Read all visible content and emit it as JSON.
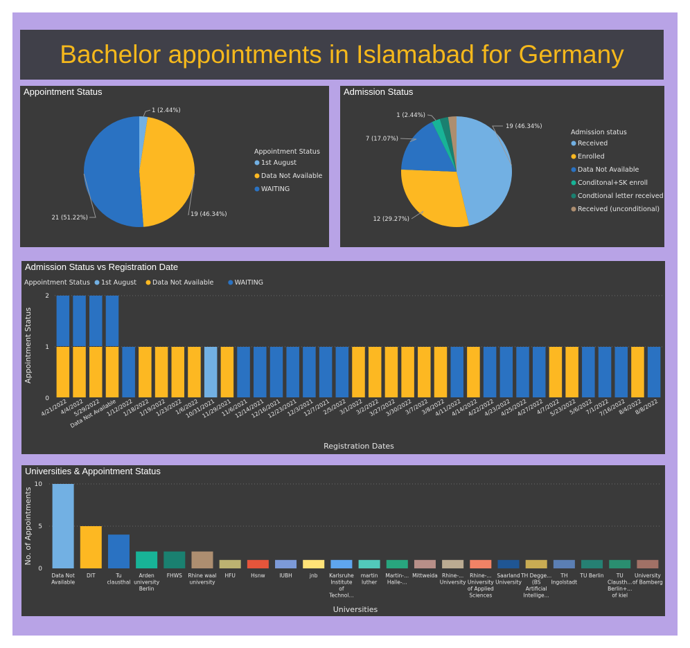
{
  "title": "Bachelor appointments in Islamabad for Germany",
  "colors": {
    "light_blue": "#72b0e3",
    "yellow": "#fdb822",
    "blue": "#2a72c2",
    "teal": "#18b397",
    "dark_teal": "#1a8070",
    "tan": "#ad8e70",
    "panel_bg": "#3a3a3a",
    "page_bg": "#b8a3e6",
    "title_color": "#f5b81c"
  },
  "chart_data": [
    {
      "id": "appointment-status",
      "type": "pie",
      "title": "Appointment Status",
      "legend_title": "Appointment Status",
      "legend_position": "right",
      "slices": [
        {
          "label": "1st August",
          "value": 1,
          "percent_label": "1 (2.44%)",
          "color": "#72b0e3"
        },
        {
          "label": "Data Not Available",
          "value": 19,
          "percent_label": "19 (46.34%)",
          "color": "#fdb822"
        },
        {
          "label": "WAITING",
          "value": 21,
          "percent_label": "21 (51.22%)",
          "color": "#2a72c2"
        }
      ]
    },
    {
      "id": "admission-status",
      "type": "pie",
      "title": "Admission Status",
      "legend_title": "Admission status",
      "legend_position": "right",
      "slices": [
        {
          "label": "Received",
          "value": 19,
          "percent_label": "19 (46.34%)",
          "color": "#72b0e3"
        },
        {
          "label": "Enrolled",
          "value": 12,
          "percent_label": "12 (29.27%)",
          "color": "#fdb822"
        },
        {
          "label": "Data Not Available",
          "value": 7,
          "percent_label": "7 (17.07%)",
          "color": "#2a72c2"
        },
        {
          "label": "Conditonal+SK enroll",
          "value": 1,
          "percent_label": "1 (2.44%)",
          "color": "#18b397"
        },
        {
          "label": "Condtional letter received",
          "value": 1,
          "percent_label": "",
          "color": "#1a8070"
        },
        {
          "label": "Received (unconditional)",
          "value": 1,
          "percent_label": "",
          "color": "#ad8e70"
        }
      ]
    },
    {
      "id": "status-vs-date",
      "type": "bar",
      "stacked": true,
      "title": "Admission Status vs Registration Date",
      "legend_title": "Appointment Status",
      "legend_position": "top-left",
      "xlabel": "Registration Dates",
      "ylabel": "Appointment Status",
      "ylim": [
        0,
        2
      ],
      "yticks": [
        0,
        1,
        2
      ],
      "grid": true,
      "categories": [
        "4/21/2022",
        "4/4/2022",
        "5/29/2022",
        "Data Not Available",
        "1/12/2022",
        "1/18/2022",
        "1/19/2022",
        "1/23/2022",
        "1/6/2022",
        "10/31/2021",
        "11/29/2021",
        "11/6/2021",
        "12/14/2021",
        "12/16/2021",
        "12/23/2021",
        "12/3/2021",
        "12/7/2021",
        "2/5/2022",
        "3/1/2022",
        "3/2/2022",
        "3/27/2022",
        "3/30/2022",
        "3/7/2022",
        "3/8/2022",
        "4/11/2022",
        "4/14/2022",
        "4/22/2022",
        "4/23/2022",
        "4/25/2022",
        "4/27/2022",
        "4/7/2022",
        "5/23/2022",
        "5/6/2022",
        "7/1/2022",
        "7/16/2022",
        "8/4/2022",
        "8/8/2022"
      ],
      "series": [
        {
          "name": "1st August",
          "color": "#72b0e3",
          "values": [
            0,
            0,
            0,
            0,
            0,
            0,
            0,
            0,
            0,
            1,
            0,
            0,
            0,
            0,
            0,
            0,
            0,
            0,
            0,
            0,
            0,
            0,
            0,
            0,
            0,
            0,
            0,
            0,
            0,
            0,
            0,
            0,
            0,
            0,
            0,
            0,
            0
          ]
        },
        {
          "name": "Data Not Available",
          "color": "#fdb822",
          "values": [
            1,
            1,
            1,
            1,
            0,
            1,
            1,
            1,
            1,
            0,
            1,
            0,
            0,
            0,
            0,
            0,
            0,
            0,
            1,
            1,
            1,
            1,
            1,
            1,
            0,
            1,
            0,
            0,
            0,
            0,
            1,
            1,
            0,
            0,
            0,
            1,
            0
          ]
        },
        {
          "name": "WAITING",
          "color": "#2a72c2",
          "values": [
            1,
            1,
            1,
            1,
            1,
            0,
            0,
            0,
            0,
            0,
            0,
            1,
            1,
            1,
            1,
            1,
            1,
            1,
            0,
            0,
            0,
            0,
            0,
            0,
            1,
            0,
            1,
            1,
            1,
            1,
            0,
            0,
            1,
            1,
            1,
            0,
            1
          ]
        }
      ]
    },
    {
      "id": "universities",
      "type": "bar",
      "title": "Universities & Appointment Status",
      "xlabel": "Universities",
      "ylabel": "No. of Appointments",
      "ylim": [
        0,
        10
      ],
      "yticks": [
        0,
        5,
        10
      ],
      "grid": true,
      "categories": [
        "Data Not Available",
        "DIT",
        "Tu clausthal",
        "Arden university Berlin",
        "FHWS",
        "Rhine waal university",
        "HFU",
        "Hsnw",
        "IUBH",
        "jnb",
        "Karlsruhe Institute of Technol... + DIT +...",
        "martin luther",
        "Martin-... Halle-...",
        "Mittweida",
        "Rhine-... University",
        "Rhine-... University of Applied Sciences",
        "Saarland University",
        "TH Degge... (BS Artificial Intellige...",
        "TH Ingolstadt",
        "TU Berlin",
        "TU Clausth... Berlin+... of kiel",
        "University of Bamberg"
      ],
      "values": [
        10,
        5,
        4,
        2,
        2,
        2,
        1,
        1,
        1,
        1,
        1,
        1,
        1,
        1,
        1,
        1,
        1,
        1,
        1,
        1,
        1,
        1
      ],
      "colors": [
        "#72b0e3",
        "#fdb822",
        "#2a72c2",
        "#18b397",
        "#1a8070",
        "#ad8e70",
        "#bcb271",
        "#e5553b",
        "#7c9ad8",
        "#ffe277",
        "#5fa6ef",
        "#52c9bb",
        "#28a67e",
        "#b88f88",
        "#bbab92",
        "#f08366",
        "#1f5694",
        "#c9ac53",
        "#5b7fb4",
        "#268073",
        "#2a8e70",
        "#a17166"
      ]
    }
  ]
}
